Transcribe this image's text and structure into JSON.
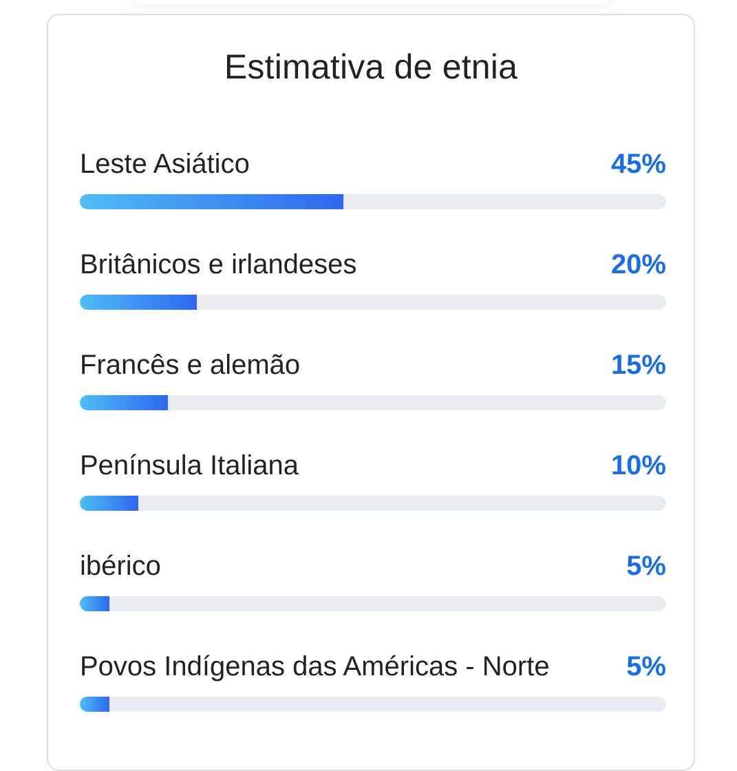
{
  "card": {
    "title": "Estimativa de etnia"
  },
  "colors": {
    "value_text": "#1a6fe0",
    "bar_start": "#4fbdf5",
    "bar_end": "#2f67ee",
    "track": "#e8ebef"
  },
  "ethnicities": [
    {
      "label": "Leste Asiático",
      "value": "45%",
      "fraction": 0.45
    },
    {
      "label": "Britânicos e irlandeses",
      "value": "20%",
      "fraction": 0.2
    },
    {
      "label": "Francês e alemão",
      "value": "15%",
      "fraction": 0.15
    },
    {
      "label": "Península Italiana",
      "value": "10%",
      "fraction": 0.1
    },
    {
      "label": "ibérico",
      "value": "5%",
      "fraction": 0.05
    },
    {
      "label": "Povos Indígenas das Américas - Norte",
      "value": "5%",
      "fraction": 0.05
    }
  ]
}
